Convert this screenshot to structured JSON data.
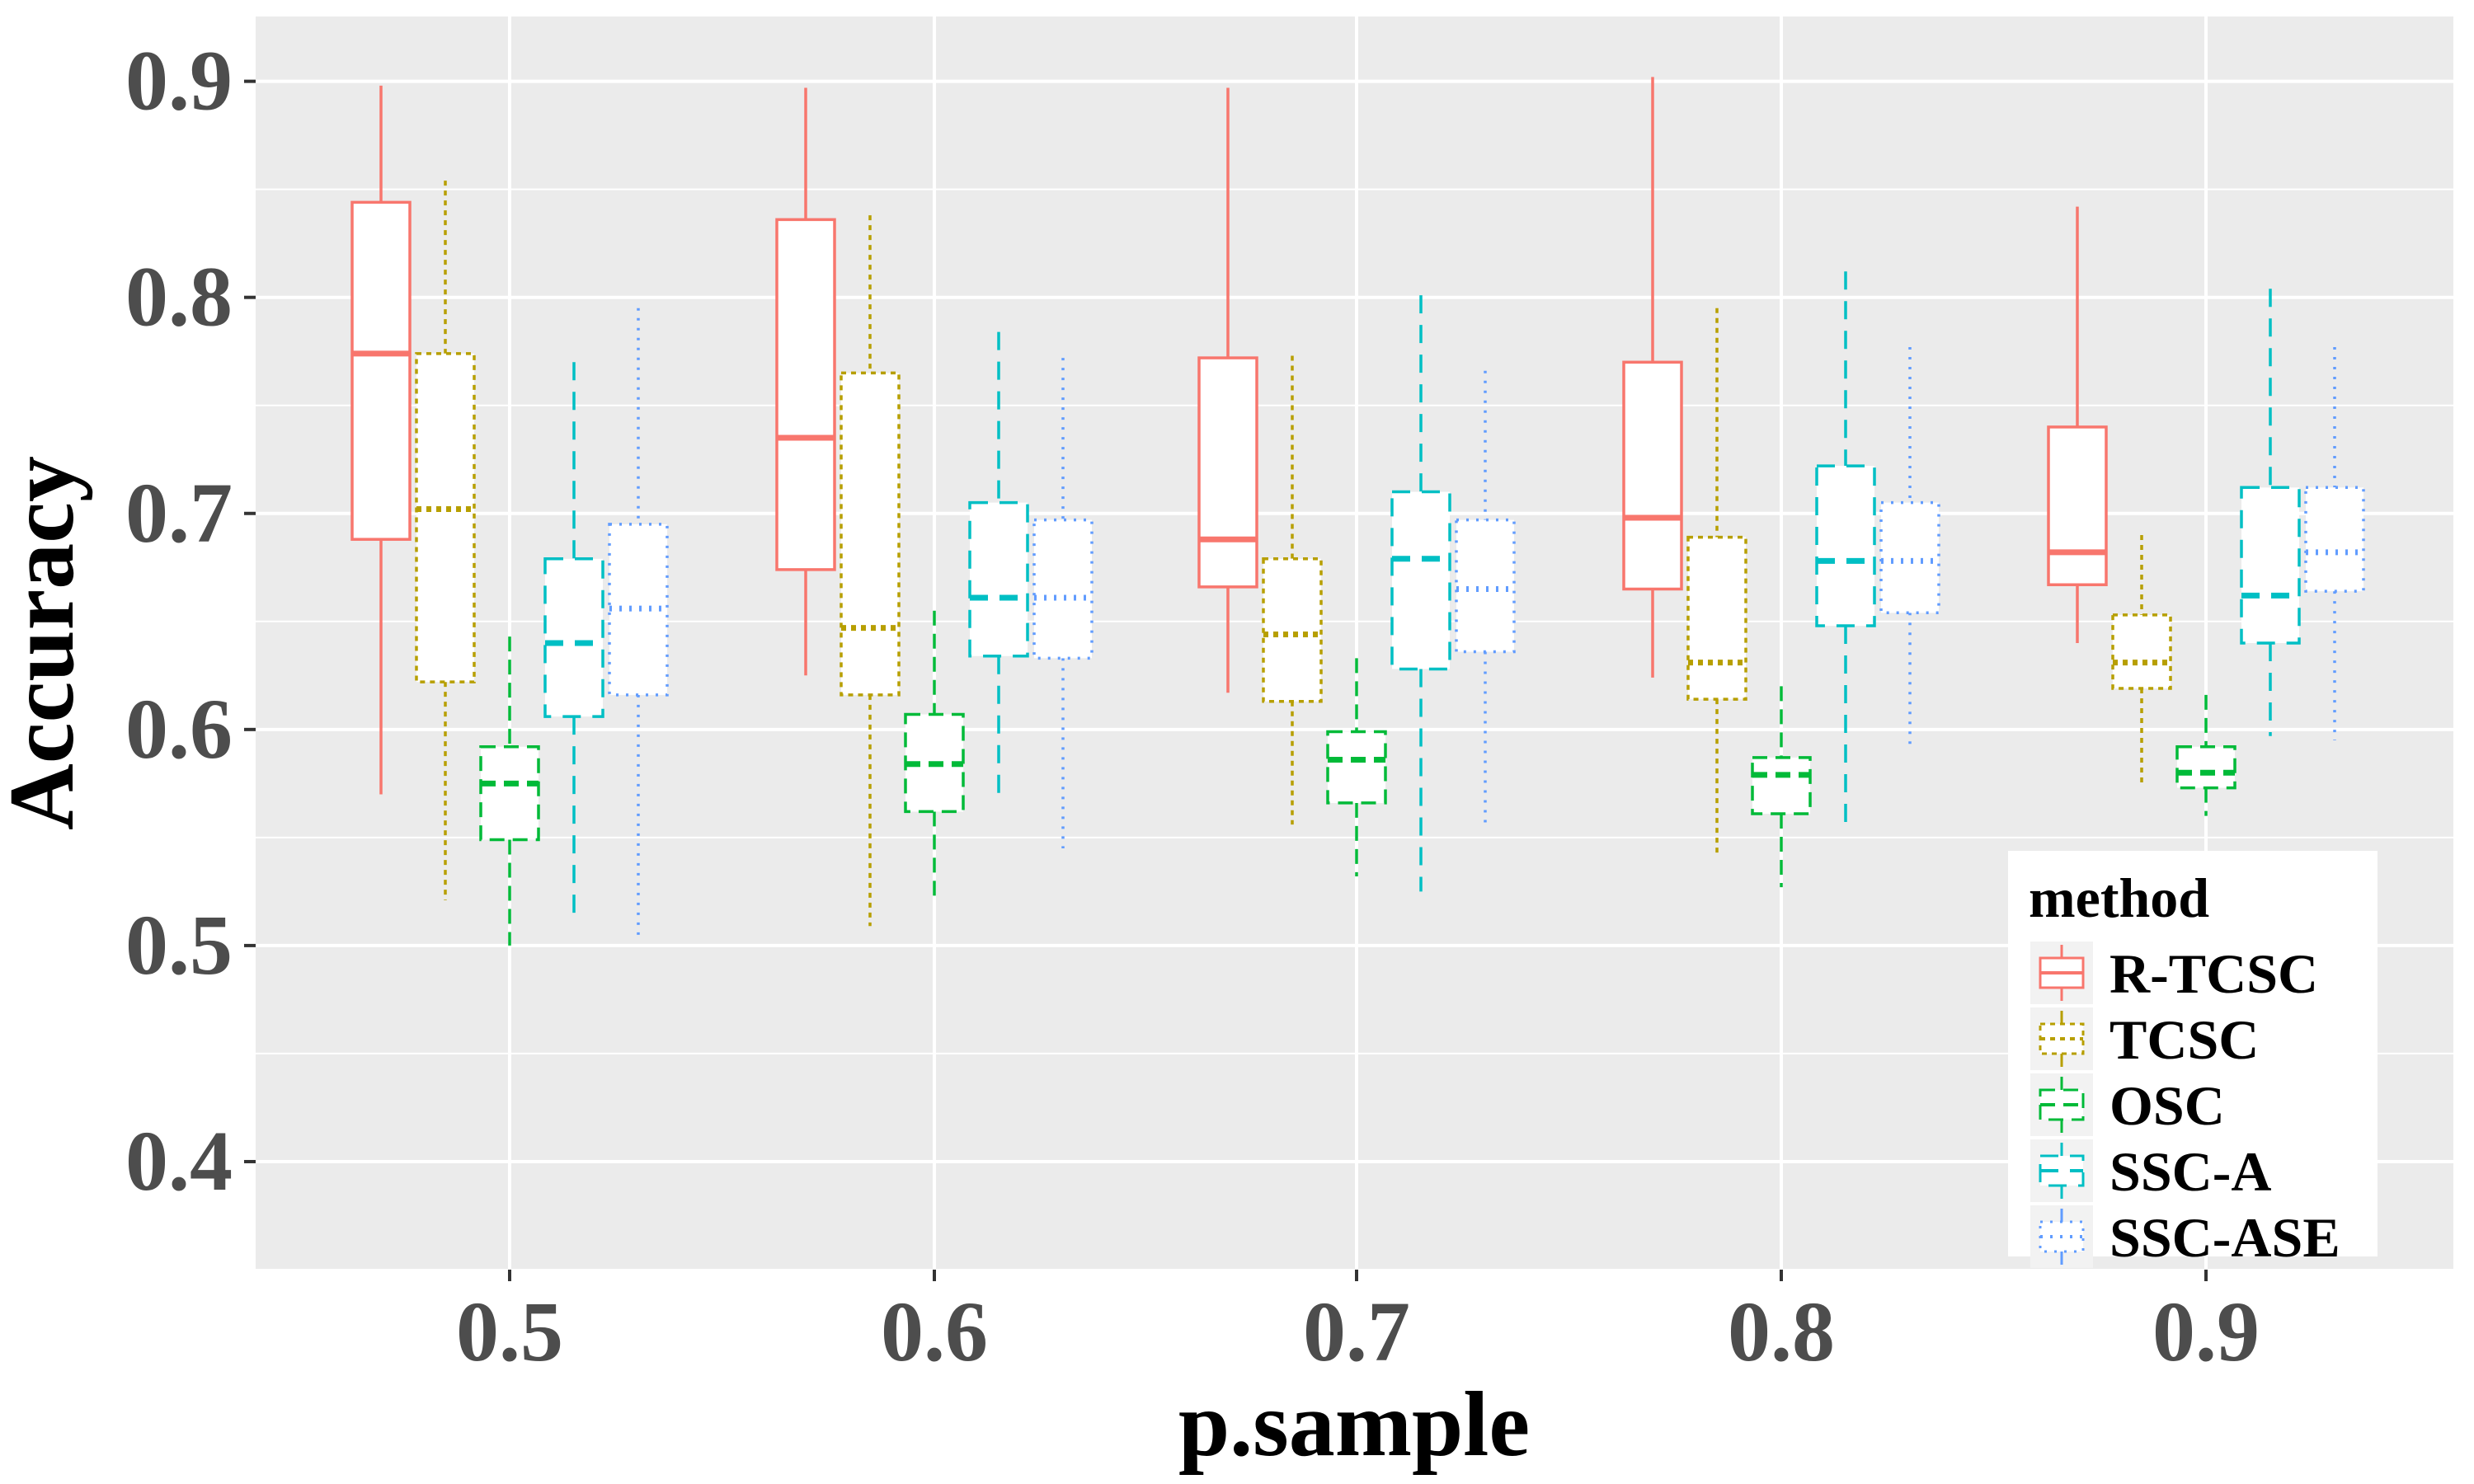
{
  "chart_data": {
    "type": "boxplot",
    "xlabel": "p.sample",
    "ylabel": "Accuracy",
    "categories": [
      "0.5",
      "0.6",
      "0.7",
      "0.8",
      "0.9"
    ],
    "y_ticks": [
      "0.4",
      "0.5",
      "0.6",
      "0.7",
      "0.8",
      "0.9"
    ],
    "ylim": [
      0.35,
      0.93
    ],
    "grid": true,
    "legend": {
      "title": "method",
      "position": "bottom-right"
    },
    "series": [
      {
        "name": "R-TCSC",
        "color": "#F8766D",
        "dash": "solid",
        "boxes": [
          {
            "min": 0.57,
            "q1": 0.688,
            "median": 0.774,
            "q3": 0.844,
            "max": 0.898
          },
          {
            "min": 0.625,
            "q1": 0.674,
            "median": 0.735,
            "q3": 0.836,
            "max": 0.897
          },
          {
            "min": 0.617,
            "q1": 0.666,
            "median": 0.688,
            "q3": 0.772,
            "max": 0.897
          },
          {
            "min": 0.624,
            "q1": 0.665,
            "median": 0.698,
            "q3": 0.77,
            "max": 0.902
          },
          {
            "min": 0.64,
            "q1": 0.667,
            "median": 0.682,
            "q3": 0.74,
            "max": 0.842
          }
        ]
      },
      {
        "name": "TCSC",
        "color": "#B79F00",
        "dash": "dotted",
        "boxes": [
          {
            "min": 0.521,
            "q1": 0.622,
            "median": 0.702,
            "q3": 0.774,
            "max": 0.854
          },
          {
            "min": 0.509,
            "q1": 0.616,
            "median": 0.647,
            "q3": 0.765,
            "max": 0.838
          },
          {
            "min": 0.556,
            "q1": 0.613,
            "median": 0.644,
            "q3": 0.679,
            "max": 0.773
          },
          {
            "min": 0.543,
            "q1": 0.614,
            "median": 0.631,
            "q3": 0.689,
            "max": 0.795
          },
          {
            "min": 0.574,
            "q1": 0.619,
            "median": 0.631,
            "q3": 0.653,
            "max": 0.69
          }
        ]
      },
      {
        "name": "OSC",
        "color": "#00BA38",
        "dash": "dashed",
        "boxes": [
          {
            "min": 0.5,
            "q1": 0.549,
            "median": 0.575,
            "q3": 0.592,
            "max": 0.643
          },
          {
            "min": 0.52,
            "q1": 0.562,
            "median": 0.584,
            "q3": 0.607,
            "max": 0.655
          },
          {
            "min": 0.532,
            "q1": 0.566,
            "median": 0.586,
            "q3": 0.599,
            "max": 0.633
          },
          {
            "min": 0.527,
            "q1": 0.561,
            "median": 0.579,
            "q3": 0.587,
            "max": 0.62
          },
          {
            "min": 0.56,
            "q1": 0.573,
            "median": 0.58,
            "q3": 0.592,
            "max": 0.616
          }
        ]
      },
      {
        "name": "SSC-A",
        "color": "#00BFC4",
        "dash": "longdash",
        "boxes": [
          {
            "min": 0.514,
            "q1": 0.606,
            "median": 0.64,
            "q3": 0.679,
            "max": 0.77
          },
          {
            "min": 0.566,
            "q1": 0.634,
            "median": 0.661,
            "q3": 0.705,
            "max": 0.784
          },
          {
            "min": 0.525,
            "q1": 0.628,
            "median": 0.679,
            "q3": 0.71,
            "max": 0.801
          },
          {
            "min": 0.556,
            "q1": 0.648,
            "median": 0.678,
            "q3": 0.722,
            "max": 0.812
          },
          {
            "min": 0.597,
            "q1": 0.64,
            "median": 0.662,
            "q3": 0.712,
            "max": 0.804
          }
        ]
      },
      {
        "name": "SSC-ASE",
        "color": "#619CFF",
        "dash": "dotted-fine",
        "boxes": [
          {
            "min": 0.504,
            "q1": 0.616,
            "median": 0.656,
            "q3": 0.695,
            "max": 0.795
          },
          {
            "min": 0.545,
            "q1": 0.633,
            "median": 0.661,
            "q3": 0.697,
            "max": 0.772
          },
          {
            "min": 0.554,
            "q1": 0.636,
            "median": 0.665,
            "q3": 0.697,
            "max": 0.766
          },
          {
            "min": 0.59,
            "q1": 0.654,
            "median": 0.678,
            "q3": 0.705,
            "max": 0.777
          },
          {
            "min": 0.595,
            "q1": 0.664,
            "median": 0.682,
            "q3": 0.712,
            "max": 0.777
          }
        ]
      }
    ]
  }
}
